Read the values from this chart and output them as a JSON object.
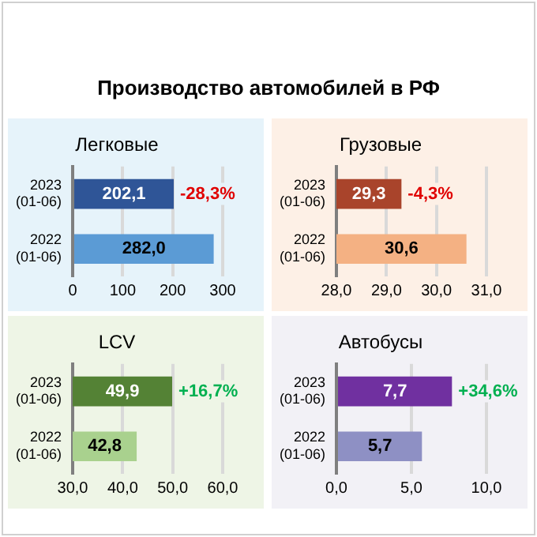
{
  "chart_data": [
    {
      "type": "other",
      "title": "Производство автомобилей в РФ"
    },
    {
      "type": "bar",
      "orientation": "horizontal",
      "title": "Легковые",
      "categories": [
        "2023 (01-06)",
        "2022 (01-06)"
      ],
      "values": [
        202.1,
        282.0
      ],
      "colors": [
        "#2f5597",
        "#5b9bd5"
      ],
      "value_labels": [
        "202,1",
        "282,0"
      ],
      "xlim": [
        0,
        300
      ],
      "xticks": [
        0,
        100,
        200,
        300
      ],
      "grid": "x",
      "annotations": [
        "-28,3%"
      ]
    },
    {
      "type": "bar",
      "orientation": "horizontal",
      "title": "Грузовые",
      "categories": [
        "2023 (01-06)",
        "2022 (01-06)"
      ],
      "values": [
        29.3,
        30.6
      ],
      "colors": [
        "#a9442b",
        "#f4b183"
      ],
      "value_labels": [
        "29,3",
        "30,6"
      ],
      "xlim": [
        28,
        31
      ],
      "xticks": [
        {
          "value": 28,
          "label": "28,0"
        },
        {
          "value": 29,
          "label": "29,0"
        },
        {
          "value": 30,
          "label": "30,0"
        },
        {
          "value": 31,
          "label": "31,0"
        }
      ],
      "grid": "x",
      "annotations": [
        "-4,3%"
      ]
    },
    {
      "type": "bar",
      "orientation": "horizontal",
      "title": "LCV",
      "categories": [
        "2023 (01-06)",
        "2022 (01-06)"
      ],
      "values": [
        49.9,
        42.8
      ],
      "colors": [
        "#548235",
        "#a9d18e"
      ],
      "value_labels": [
        "49,9",
        "42,8"
      ],
      "xlim": [
        30,
        60
      ],
      "xticks": [
        {
          "value": 30,
          "label": "30,0"
        },
        {
          "value": 40,
          "label": "40,0"
        },
        {
          "value": 50,
          "label": "50,0"
        },
        {
          "value": 60,
          "label": "60,0"
        }
      ],
      "grid": "x",
      "annotations": [
        "+16,7%"
      ]
    },
    {
      "type": "bar",
      "orientation": "horizontal",
      "title": "Автобусы",
      "categories": [
        "2023 (01-06)",
        "2022 (01-06)"
      ],
      "values": [
        7.7,
        5.7
      ],
      "colors": [
        "#7030a0",
        "#8e90c4"
      ],
      "value_labels": [
        "7,7",
        "5,7"
      ],
      "xlim": [
        0,
        10
      ],
      "xticks": [
        {
          "value": 0,
          "label": "0,0"
        },
        {
          "value": 5,
          "label": "5,0"
        },
        {
          "value": 10,
          "label": "10,0"
        }
      ],
      "grid": "x",
      "annotations": [
        "+34,6%"
      ]
    }
  ]
}
